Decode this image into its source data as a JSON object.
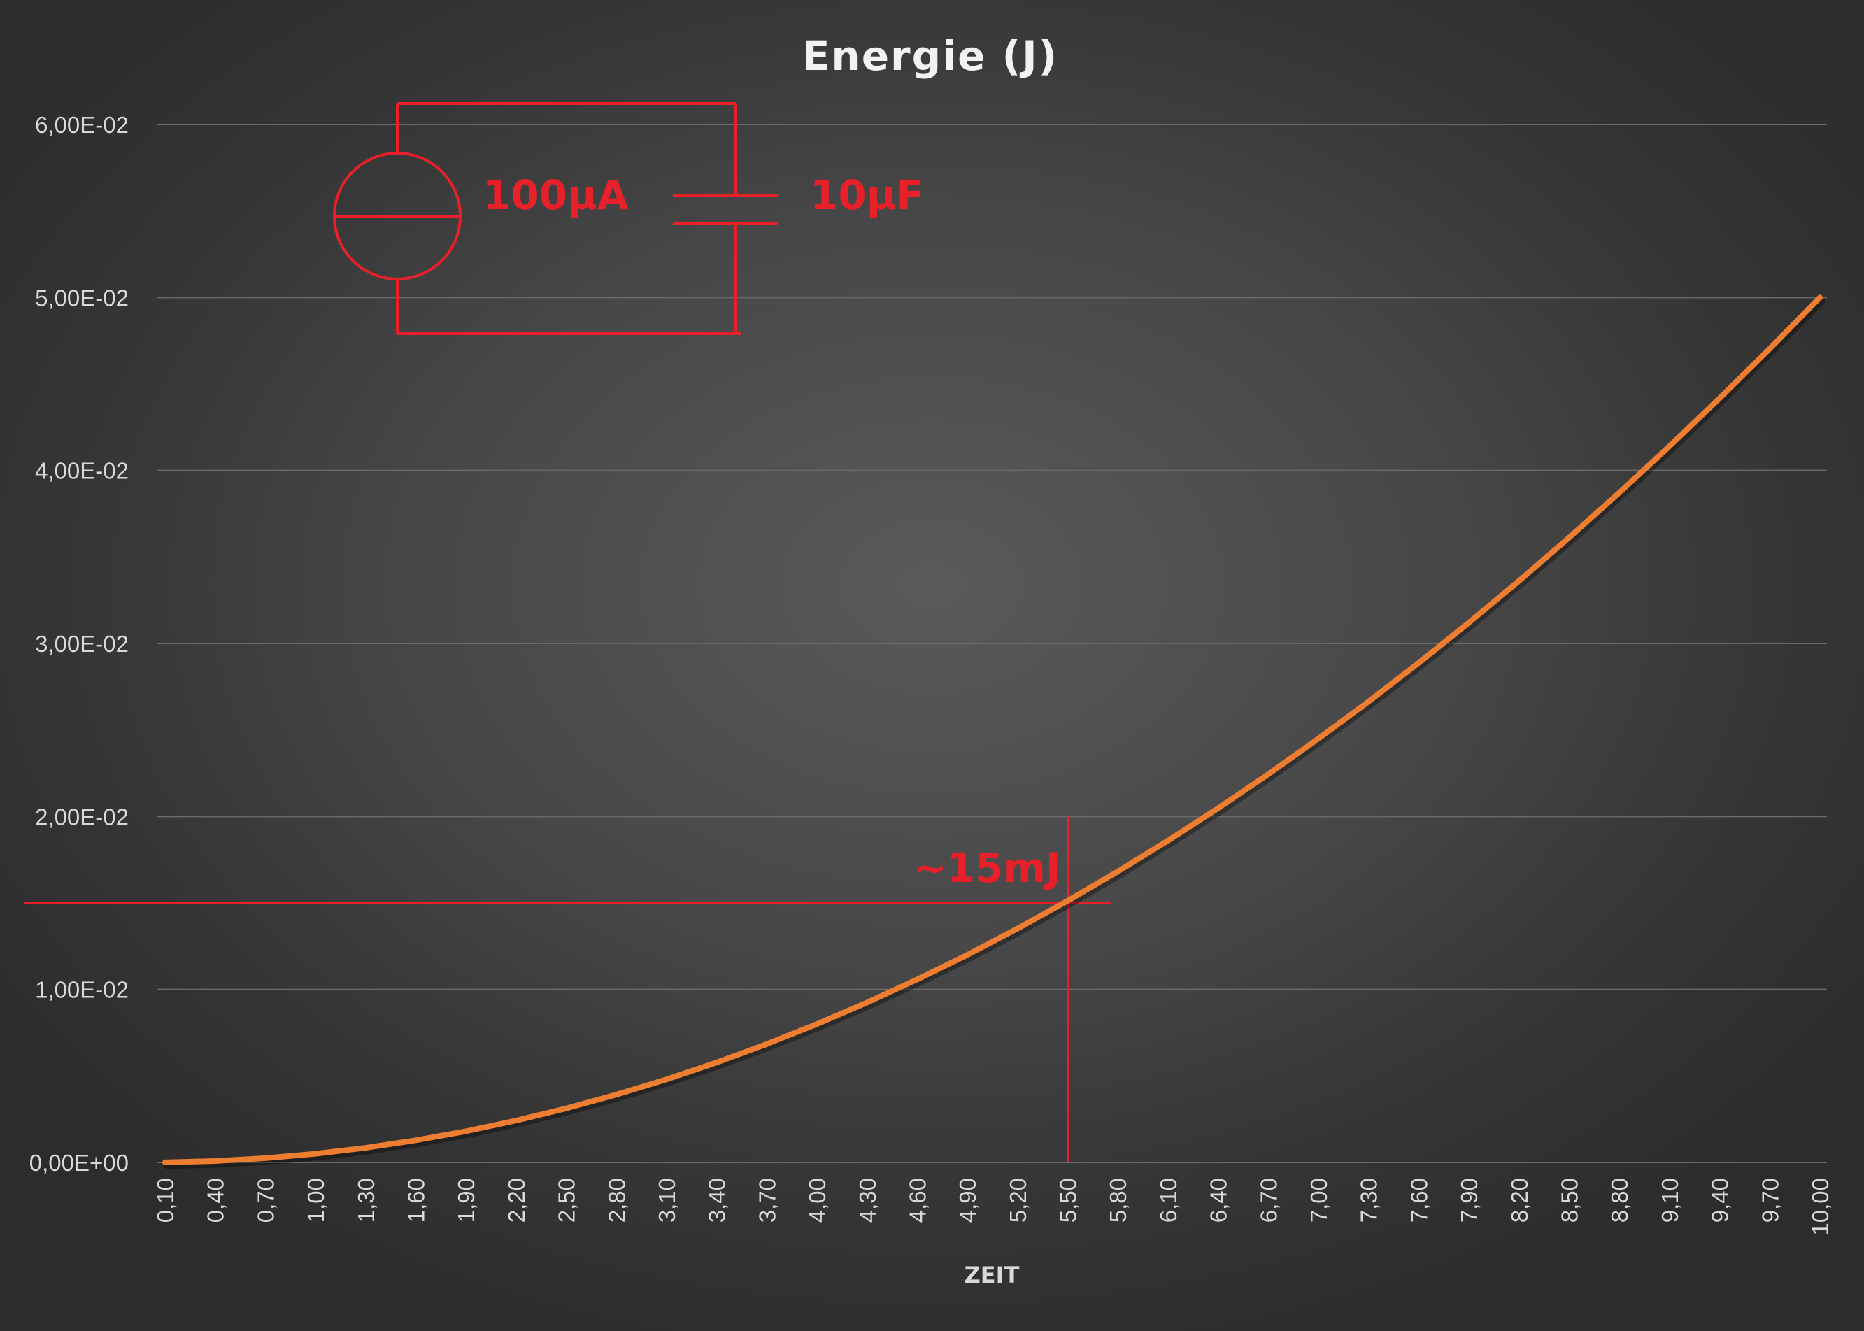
{
  "chart_data": {
    "type": "line",
    "title": "Energie (J)",
    "xlabel": "ZEIT",
    "ylabel": "",
    "x_tick_labels": [
      "0,10",
      "0,40",
      "0,70",
      "1,00",
      "1,30",
      "1,60",
      "1,90",
      "2,20",
      "2,50",
      "2,80",
      "3,10",
      "3,40",
      "3,70",
      "4,00",
      "4,30",
      "4,60",
      "4,90",
      "5,20",
      "5,50",
      "5,80",
      "6,10",
      "6,40",
      "6,70",
      "7,00",
      "7,30",
      "7,60",
      "7,90",
      "8,20",
      "8,50",
      "8,80",
      "9,10",
      "9,40",
      "9,70",
      "10,00"
    ],
    "y_tick_labels": [
      "0,00E+00",
      "1,00E-02",
      "2,00E-02",
      "3,00E-02",
      "4,00E-02",
      "5,00E-02",
      "6,00E-02"
    ],
    "ylim": [
      0,
      0.06
    ],
    "xlim": [
      0.1,
      10.0
    ],
    "grid": true,
    "series": [
      {
        "color": "#ed7d31",
        "x": [
          0.1,
          0.4,
          0.7,
          1.0,
          1.3,
          1.6,
          1.9,
          2.2,
          2.5,
          2.8,
          3.1,
          3.4,
          3.7,
          4.0,
          4.3,
          4.6,
          4.9,
          5.2,
          5.5,
          5.8,
          6.1,
          6.4,
          6.7,
          7.0,
          7.3,
          7.6,
          7.9,
          8.2,
          8.5,
          8.8,
          9.1,
          9.4,
          9.7,
          10.0
        ],
        "y": [
          5e-06,
          8e-05,
          0.000245,
          0.0005,
          0.000845,
          0.00128,
          0.001805,
          0.00242,
          0.003125,
          0.00392,
          0.004805,
          0.00578,
          0.006845,
          0.008,
          0.009245,
          0.01058,
          0.012005,
          0.01352,
          0.015125,
          0.01682,
          0.018605,
          0.02048,
          0.022445,
          0.0245,
          0.026645,
          0.02888,
          0.031205,
          0.03362,
          0.036125,
          0.03872,
          0.041405,
          0.04418,
          0.047045,
          0.05
        ]
      }
    ],
    "annotations": {
      "marker": {
        "x": 5.5,
        "y": 0.015,
        "label": "~15mJ",
        "color": "#e8202a"
      },
      "circuit": {
        "source_label": "100µA",
        "capacitor_label": "10µF",
        "color": "#e8202a"
      }
    }
  }
}
